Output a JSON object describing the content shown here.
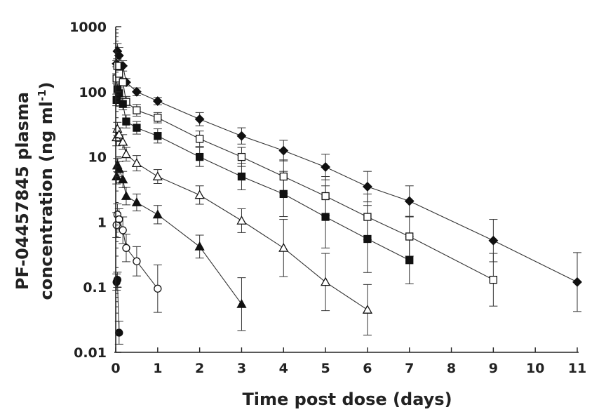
{
  "chart_data": {
    "type": "line",
    "yscale": "log",
    "xlabel": "Time post dose (days)",
    "ylabel_line1": "PF-04457845 plasma",
    "ylabel_line2": "concentration (ng ml",
    "ylabel_sup": "-1",
    "ylabel_end": ")",
    "xlim": [
      0,
      11
    ],
    "ylim": [
      0.01,
      1000
    ],
    "x_ticks": [
      {
        "value": 0,
        "label": "0"
      },
      {
        "value": 1,
        "label": "1"
      },
      {
        "value": 2,
        "label": "2"
      },
      {
        "value": 3,
        "label": "3"
      },
      {
        "value": 4,
        "label": "4"
      },
      {
        "value": 5,
        "label": "5"
      },
      {
        "value": 6,
        "label": "6"
      },
      {
        "value": 7,
        "label": "7"
      },
      {
        "value": 8,
        "label": "8"
      },
      {
        "value": 9,
        "label": "9"
      },
      {
        "value": 10,
        "label": "10"
      },
      {
        "value": 11,
        "label": "11"
      }
    ],
    "y_ticks": [
      {
        "value": 0.01,
        "label": "0.01"
      },
      {
        "value": 0.1,
        "label": "0.1"
      },
      {
        "value": 1,
        "label": "1"
      },
      {
        "value": 10,
        "label": "10"
      },
      {
        "value": 100,
        "label": "100"
      },
      {
        "value": 1000,
        "label": "1000"
      }
    ],
    "series": [
      {
        "marker": "filled-diamond",
        "x": [
          0.02,
          0.04,
          0.08,
          0.17,
          0.25,
          0.5,
          1,
          2,
          3,
          4,
          5,
          6,
          7,
          9,
          11
        ],
        "y": [
          270,
          420,
          360,
          250,
          140,
          100,
          72,
          38,
          21,
          12.5,
          7,
          3.5,
          2.1,
          0.52,
          0.12
        ],
        "err": [
          300,
          550,
          480,
          300,
          160,
          115,
          82,
          48,
          28,
          18,
          11,
          6,
          3.6,
          1.1,
          0.34
        ]
      },
      {
        "marker": "open-square",
        "x": [
          0.02,
          0.04,
          0.08,
          0.17,
          0.25,
          0.5,
          1,
          2,
          3,
          4,
          5,
          6,
          7,
          9
        ],
        "y": [
          160,
          250,
          190,
          140,
          70,
          52,
          40,
          19,
          10,
          5,
          2.5,
          1.2,
          0.6,
          0.13
        ],
        "err": [
          190,
          280,
          220,
          160,
          85,
          64,
          48,
          25,
          14,
          9,
          5,
          2.7,
          1.2,
          0.33
        ]
      },
      {
        "marker": "filled-square",
        "x": [
          0.02,
          0.04,
          0.08,
          0.17,
          0.25,
          0.5,
          1,
          2,
          3,
          4,
          5,
          6,
          7
        ],
        "y": [
          75,
          110,
          95,
          65,
          35,
          28,
          21,
          10,
          5,
          2.7,
          1.2,
          0.55,
          0.26
        ],
        "err": [
          92,
          130,
          115,
          80,
          44,
          35,
          27,
          14,
          8,
          6,
          3.6,
          1.8,
          0.6
        ]
      },
      {
        "marker": "open-triangle",
        "x": [
          0.02,
          0.04,
          0.08,
          0.17,
          0.25,
          0.5,
          1,
          2,
          3,
          4,
          5,
          6
        ],
        "y": [
          20,
          27,
          22,
          17,
          11,
          8,
          5,
          2.6,
          1.05,
          0.4,
          0.12,
          0.045
        ],
        "err": [
          27,
          34,
          28,
          22,
          14,
          10.5,
          6.4,
          3.6,
          1.6,
          1.1,
          0.33,
          0.11
        ]
      },
      {
        "marker": "filled-triangle",
        "x": [
          0.02,
          0.04,
          0.08,
          0.17,
          0.25,
          0.5,
          1,
          2,
          3
        ],
        "y": [
          5,
          7.5,
          6.5,
          4.5,
          2.5,
          2.0,
          1.3,
          0.42,
          0.055
        ],
        "err": [
          6.5,
          9.5,
          8.5,
          6,
          3.4,
          2.7,
          1.8,
          0.63,
          0.14
        ]
      },
      {
        "marker": "open-circle",
        "x": [
          0.02,
          0.04,
          0.08,
          0.17,
          0.25,
          0.5,
          1
        ],
        "y": [
          0.9,
          1.3,
          1.1,
          0.75,
          0.4,
          0.25,
          0.095
        ],
        "err": [
          1.4,
          1.9,
          1.6,
          1.2,
          0.65,
          0.42,
          0.22
        ]
      },
      {
        "marker": "filled-circle",
        "x": [
          0.02,
          0.04,
          0.08
        ],
        "y": [
          0.12,
          0.13,
          0.02
        ],
        "err": [
          0.16,
          0.17,
          0.03
        ]
      }
    ]
  }
}
